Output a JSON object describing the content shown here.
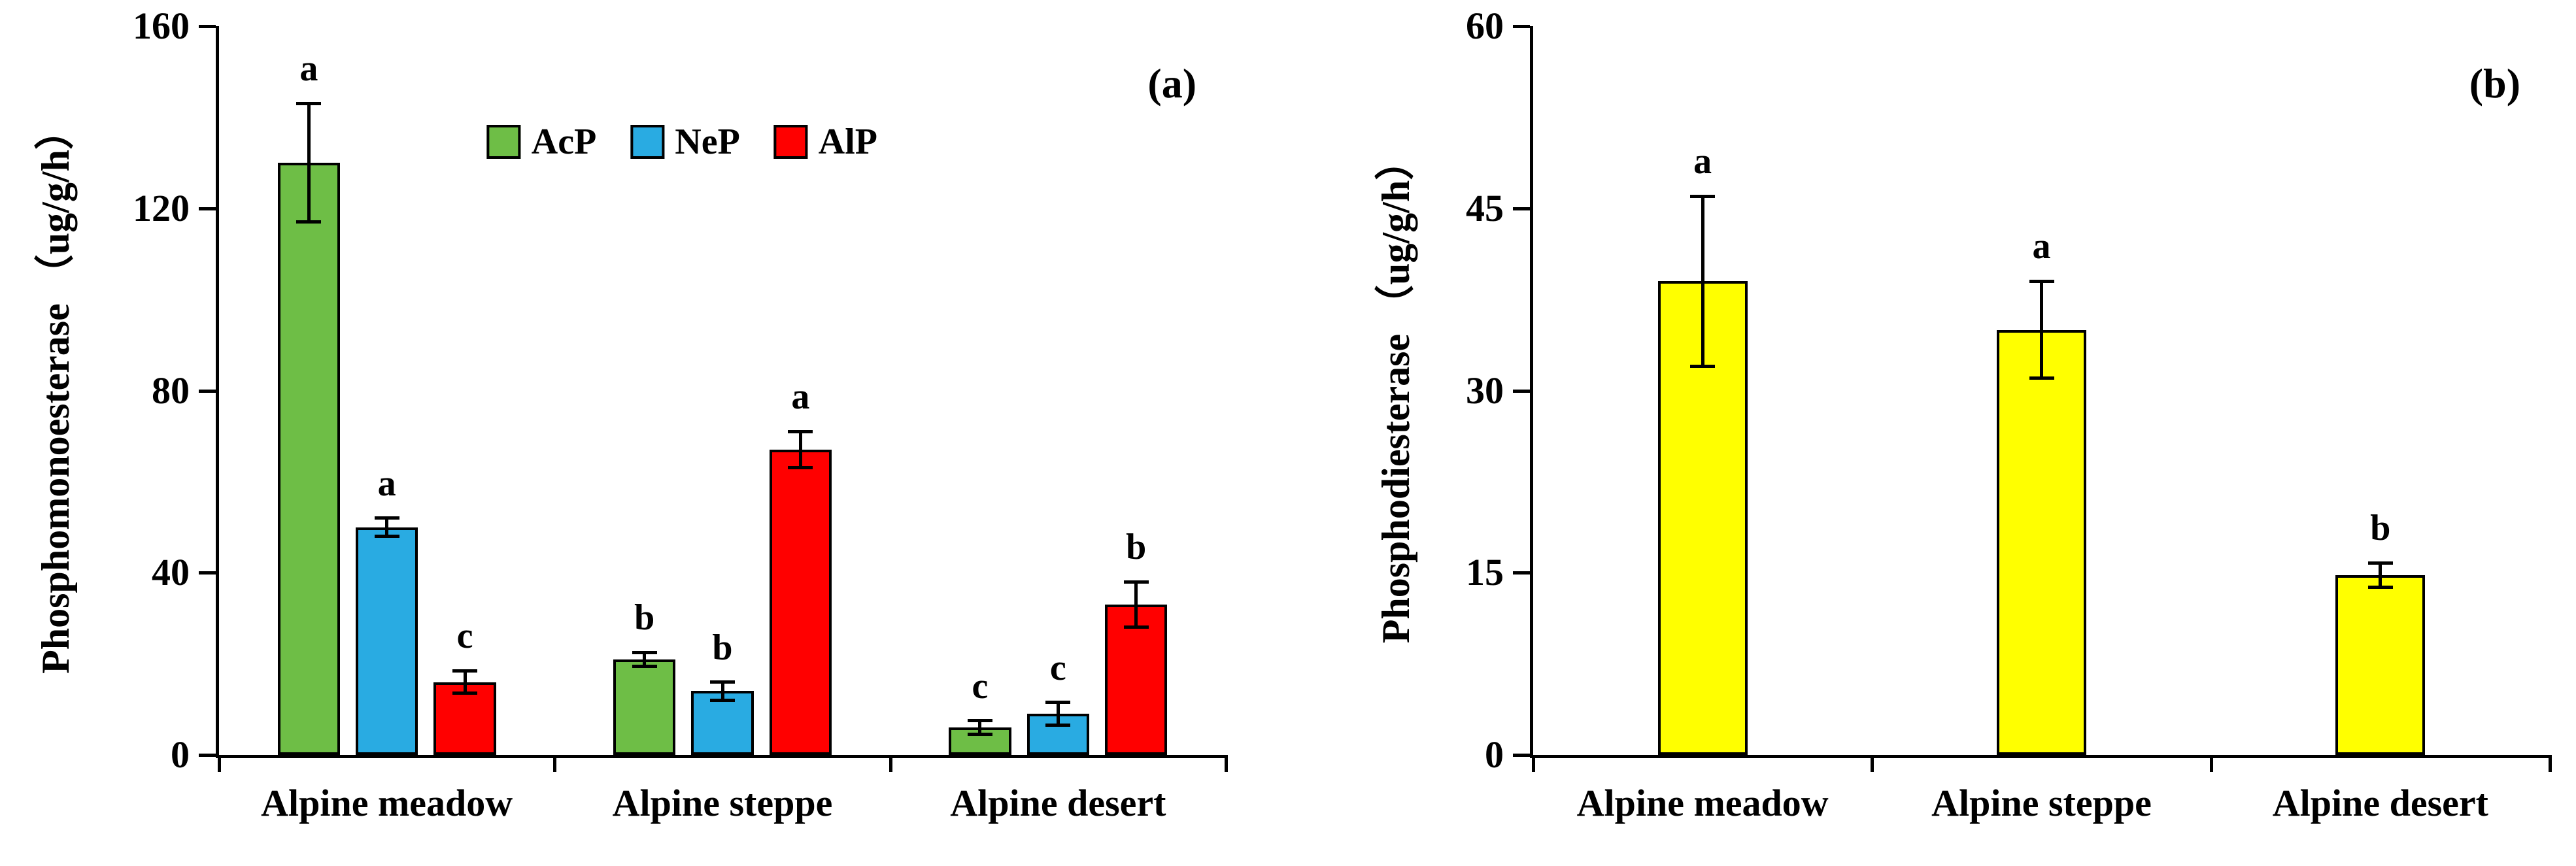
{
  "figure": {
    "background_color": "#ffffff"
  },
  "chart_data": [
    {
      "type": "bar",
      "panel_label": "(a)",
      "title": "",
      "ylabel": "Phosphomonoesterase （ug/g/h）",
      "xlabel": "",
      "categories": [
        "Alpine meadow",
        "Alpine steppe",
        "Alpine desert"
      ],
      "series": [
        {
          "name": "AcP",
          "color": "#6EBE46",
          "values": [
            130,
            21,
            6
          ],
          "errors": [
            13,
            1.5,
            1.5
          ],
          "letters": [
            "a",
            "b",
            "c"
          ]
        },
        {
          "name": "NeP",
          "color": "#29ABE2",
          "values": [
            50,
            14,
            9
          ],
          "errors": [
            2,
            2,
            2.5
          ],
          "letters": [
            "a",
            "b",
            "c"
          ]
        },
        {
          "name": "AlP",
          "color": "#FF0000",
          "values": [
            16,
            67,
            33
          ],
          "errors": [
            2.5,
            4,
            5
          ],
          "letters": [
            "c",
            "a",
            "b"
          ]
        }
      ],
      "ylim": [
        0,
        160
      ],
      "yticks": [
        0,
        40,
        80,
        120,
        160
      ],
      "grid": false,
      "legend": {
        "show": true,
        "position": "top-center"
      }
    },
    {
      "type": "bar",
      "panel_label": "(b)",
      "title": "",
      "ylabel": "Phosphodiesterase （ug/g/h）",
      "xlabel": "",
      "categories": [
        "Alpine meadow",
        "Alpine steppe",
        "Alpine desert"
      ],
      "series": [
        {
          "color": "#FFFF00",
          "values": [
            39,
            35,
            14.8
          ],
          "errors": [
            7,
            4,
            1
          ],
          "letters": [
            "a",
            "a",
            "b"
          ]
        }
      ],
      "ylim": [
        0,
        60
      ],
      "yticks": [
        0,
        15,
        30,
        45,
        60
      ],
      "grid": false,
      "legend": {
        "show": false,
        "position": "none"
      }
    }
  ]
}
